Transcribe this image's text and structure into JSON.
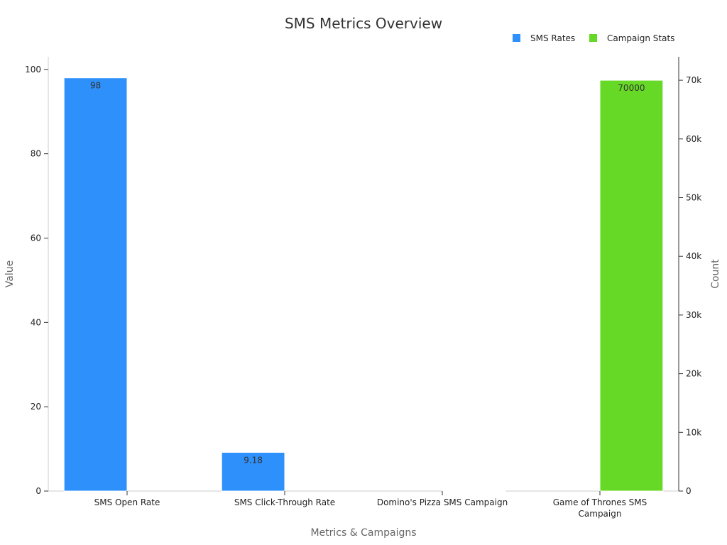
{
  "chart_data": {
    "type": "bar",
    "title": "SMS Metrics Overview",
    "xlabel": "Metrics & Campaigns",
    "ylabel": "Value",
    "y2label": "Count",
    "categories": [
      [
        "SMS Open Rate"
      ],
      [
        "SMS Click-Through Rate"
      ],
      [
        "Domino's Pizza SMS Campaign"
      ],
      [
        "Game of Thrones SMS",
        "Campaign"
      ]
    ],
    "ylim": [
      0,
      103
    ],
    "y2lim": [
      0,
      74000
    ],
    "yticks": [
      0,
      20,
      40,
      60,
      80,
      100
    ],
    "y2ticks": [
      0,
      10000,
      20000,
      30000,
      40000,
      50000,
      60000,
      70000
    ],
    "y2tick_labels": [
      "0",
      "10k",
      "20k",
      "30k",
      "40k",
      "50k",
      "60k",
      "70k"
    ],
    "legend_position": "top-right",
    "grid": false,
    "series": [
      {
        "name": "SMS Rates",
        "axis": "left",
        "color": "#2e90fa",
        "values": [
          98,
          9.18,
          null,
          null
        ],
        "labels": [
          "98",
          "9.18",
          "",
          ""
        ]
      },
      {
        "name": "Campaign Stats",
        "axis": "right",
        "color": "#66d926",
        "values": [
          null,
          null,
          100,
          70000
        ],
        "labels": [
          "",
          "",
          "",
          "70000"
        ]
      }
    ]
  }
}
